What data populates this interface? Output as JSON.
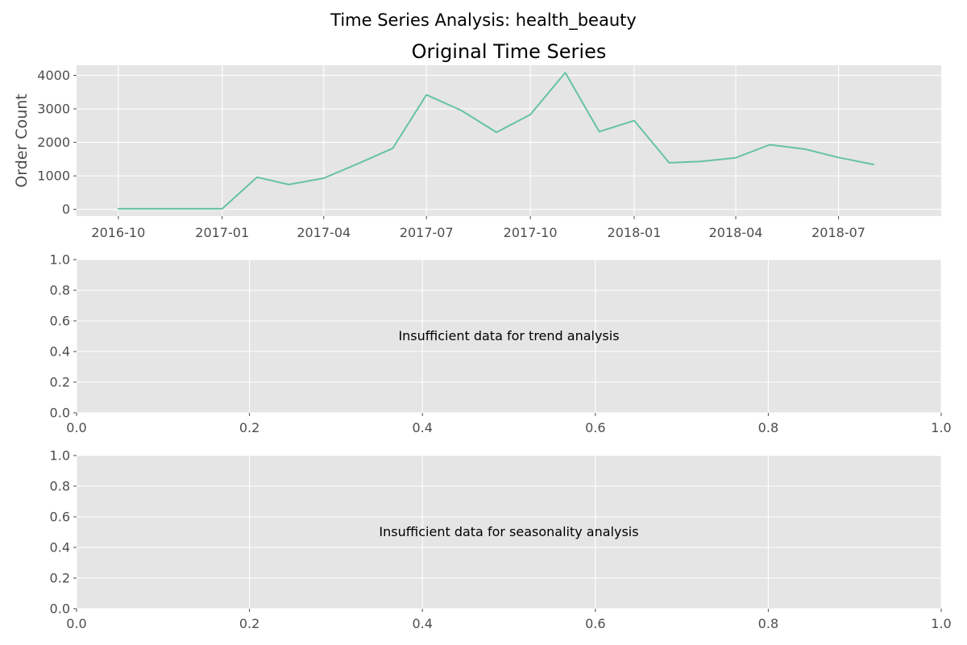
{
  "figure": {
    "suptitle": "Time Series Analysis: health_beauty"
  },
  "chart_data": [
    {
      "type": "line",
      "title": "Original Time Series",
      "xlabel": "",
      "ylabel": "Order Count",
      "x_tick_labels": [
        "2016-10",
        "2017-01",
        "2017-04",
        "2017-07",
        "2017-10",
        "2018-01",
        "2018-04",
        "2018-07"
      ],
      "y_ticks": [
        0,
        1000,
        2000,
        3000,
        4000
      ],
      "xlim": [
        "2016-08-25",
        "2018-09-30"
      ],
      "ylim": [
        -200,
        4300
      ],
      "grid": true,
      "color": "#66c2a5",
      "x": [
        "2016-10-01",
        "2016-11-01",
        "2016-12-01",
        "2017-01-01",
        "2017-02-01",
        "2017-03-01",
        "2017-04-01",
        "2017-05-01",
        "2017-06-01",
        "2017-07-01",
        "2017-08-01",
        "2017-09-01",
        "2017-10-01",
        "2017-11-01",
        "2017-12-01",
        "2018-01-01",
        "2018-02-01",
        "2018-03-01",
        "2018-04-01",
        "2018-05-01",
        "2018-06-01",
        "2018-07-01",
        "2018-08-01"
      ],
      "values": [
        20,
        20,
        20,
        20,
        960,
        740,
        930,
        1360,
        1820,
        3420,
        2950,
        2300,
        2830,
        4080,
        2320,
        2650,
        1390,
        1430,
        1540,
        1930,
        1800,
        1550,
        1340
      ]
    },
    {
      "type": "line",
      "title": "",
      "xlabel": "",
      "ylabel": "",
      "annotation": "Insufficient data for trend analysis",
      "x_ticks": [
        "0.0",
        "0.2",
        "0.4",
        "0.6",
        "0.8",
        "1.0"
      ],
      "y_ticks": [
        "0.0",
        "0.2",
        "0.4",
        "0.6",
        "0.8",
        "1.0"
      ],
      "xlim": [
        0,
        1
      ],
      "ylim": [
        0,
        1
      ],
      "grid": true
    },
    {
      "type": "line",
      "title": "",
      "xlabel": "",
      "ylabel": "",
      "annotation": "Insufficient data for seasonality analysis",
      "x_ticks": [
        "0.0",
        "0.2",
        "0.4",
        "0.6",
        "0.8",
        "1.0"
      ],
      "y_ticks": [
        "0.0",
        "0.2",
        "0.4",
        "0.6",
        "0.8",
        "1.0"
      ],
      "xlim": [
        0,
        1
      ],
      "ylim": [
        0,
        1
      ],
      "grid": true
    }
  ]
}
